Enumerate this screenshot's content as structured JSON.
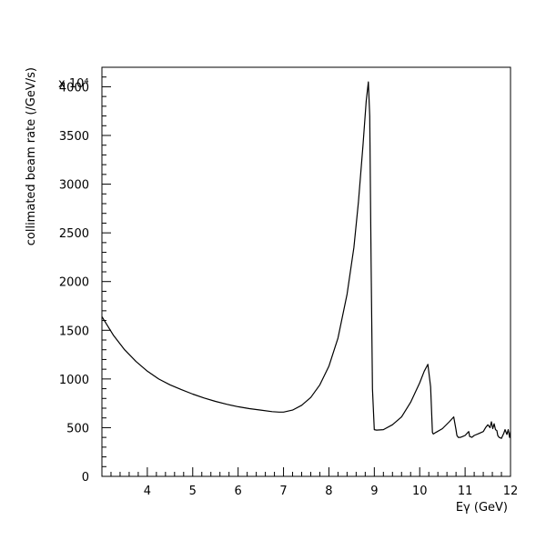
{
  "chart_data": {
    "type": "line",
    "title": "",
    "xlabel": "Eγ (GeV)",
    "ylabel": "collimated beam rate (/GeV/s)",
    "y_multiplier": "x 10⁴",
    "xlim": [
      3,
      12
    ],
    "ylim": [
      0,
      4200
    ],
    "xticks": [
      4,
      5,
      6,
      7,
      8,
      9,
      10,
      11,
      12
    ],
    "yticks": [
      0,
      500,
      1000,
      1500,
      2000,
      2500,
      3000,
      3500,
      4000
    ],
    "grid": false,
    "legend": "none",
    "series": [
      {
        "color": "#000000",
        "x": [
          3.0,
          3.25,
          3.5,
          3.75,
          4.0,
          4.25,
          4.5,
          4.75,
          5.0,
          5.25,
          5.5,
          5.75,
          6.0,
          6.25,
          6.5,
          6.75,
          6.9,
          7.0,
          7.2,
          7.4,
          7.6,
          7.8,
          8.0,
          8.2,
          8.4,
          8.55,
          8.65,
          8.75,
          8.82,
          8.87,
          8.9,
          8.93,
          8.96,
          9.0,
          9.05,
          9.2,
          9.4,
          9.6,
          9.8,
          10.0,
          10.1,
          10.18,
          10.24,
          10.28,
          10.3,
          10.35,
          10.5,
          10.65,
          10.75,
          10.8,
          10.82,
          10.85,
          10.9,
          11.0,
          11.08,
          11.1,
          11.15,
          11.2,
          11.3,
          11.4,
          11.45,
          11.5,
          11.55,
          11.58,
          11.61,
          11.64,
          11.67,
          11.7,
          11.72,
          11.75,
          11.8,
          11.85,
          11.88,
          11.92,
          11.95,
          11.98,
          12.0
        ],
        "y": [
          1640,
          1450,
          1300,
          1180,
          1080,
          1000,
          940,
          890,
          845,
          805,
          770,
          740,
          715,
          695,
          680,
          665,
          660,
          660,
          680,
          730,
          810,
          940,
          1130,
          1420,
          1870,
          2350,
          2820,
          3400,
          3850,
          4050,
          3700,
          2200,
          900,
          480,
          475,
          480,
          530,
          610,
          760,
          960,
          1080,
          1150,
          920,
          450,
          435,
          450,
          490,
          560,
          610,
          480,
          420,
          400,
          400,
          420,
          460,
          410,
          400,
          420,
          440,
          460,
          500,
          530,
          500,
          560,
          490,
          540,
          480,
          470,
          420,
          400,
          390,
          440,
          480,
          430,
          480,
          400,
          460
        ]
      }
    ]
  }
}
